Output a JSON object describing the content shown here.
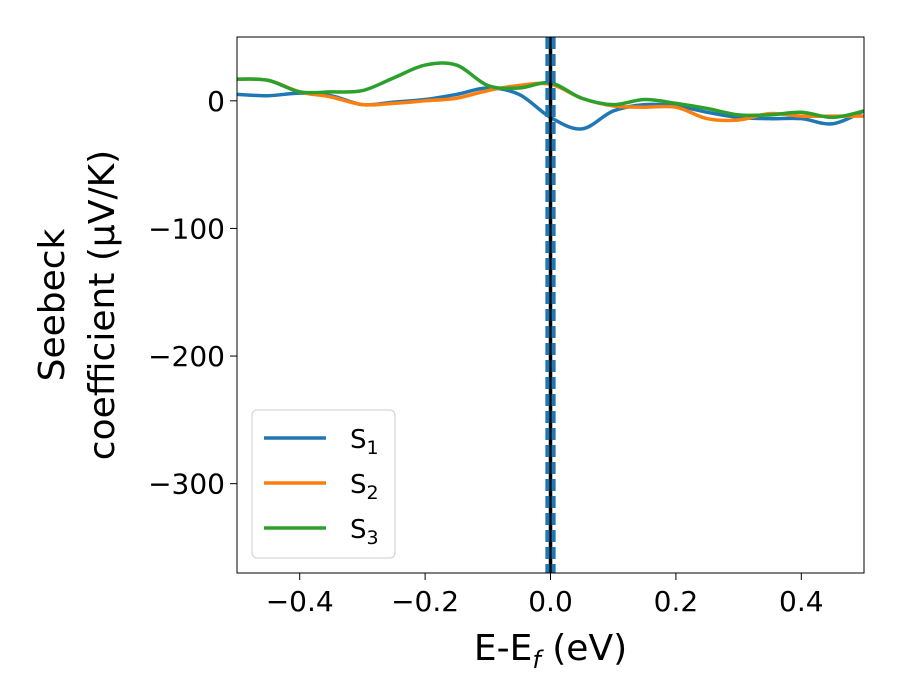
{
  "chart_data": {
    "type": "line",
    "xlabel_main": "E-E",
    "xlabel_sub": "f",
    "xlabel_unit": " (eV)",
    "ylabel_line1": "Seebeck",
    "ylabel_line2": "coefficient  (μV/K)",
    "xlim": [
      -0.5,
      0.5
    ],
    "ylim": [
      -370,
      50
    ],
    "x_ticks": [
      -0.4,
      -0.2,
      0.0,
      0.2,
      0.4
    ],
    "x_tick_labels": [
      "−0.4",
      "−0.2",
      "0.0",
      "0.2",
      "0.4"
    ],
    "y_ticks": [
      0,
      -100,
      -200,
      -300
    ],
    "y_tick_labels": [
      "0",
      "−100",
      "−200",
      "−300"
    ],
    "grid": false,
    "legend_position": "lower-left",
    "reference_lines": [
      {
        "x": 0.0,
        "style": "solid",
        "color": "#000000"
      },
      {
        "x": -0.005,
        "style": "dashed",
        "color": "#1f77b4"
      },
      {
        "x": 0.005,
        "style": "dashed",
        "color": "#1f77b4"
      }
    ],
    "series": [
      {
        "name": "S",
        "subscript": "1",
        "color": "#1f77b4",
        "x": [
          -0.5,
          -0.45,
          -0.4,
          -0.35,
          -0.3,
          -0.25,
          -0.2,
          -0.15,
          -0.1,
          -0.05,
          0.0,
          0.05,
          0.1,
          0.15,
          0.2,
          0.25,
          0.3,
          0.35,
          0.4,
          0.45,
          0.5
        ],
        "y": [
          5,
          4,
          6,
          4,
          -3,
          -1,
          1,
          5,
          10,
          5,
          -13,
          -22,
          -8,
          -3,
          -4,
          -9,
          -13,
          -14,
          -14,
          -18,
          -8
        ]
      },
      {
        "name": "S",
        "subscript": "2",
        "color": "#ff7f0e",
        "x": [
          -0.5,
          -0.45,
          -0.4,
          -0.35,
          -0.3,
          -0.25,
          -0.2,
          -0.15,
          -0.1,
          -0.05,
          0.0,
          0.05,
          0.1,
          0.15,
          0.2,
          0.25,
          0.3,
          0.35,
          0.4,
          0.45,
          0.5
        ],
        "y": [
          17,
          16,
          7,
          3,
          -3,
          -2,
          0,
          2,
          8,
          12,
          13,
          2,
          -4,
          -5,
          -5,
          -14,
          -15,
          -10,
          -12,
          -12,
          -12
        ]
      },
      {
        "name": "S",
        "subscript": "3",
        "color": "#2ca02c",
        "x": [
          -0.5,
          -0.45,
          -0.4,
          -0.35,
          -0.3,
          -0.25,
          -0.2,
          -0.15,
          -0.1,
          -0.05,
          0.0,
          0.05,
          0.1,
          0.15,
          0.2,
          0.25,
          0.3,
          0.35,
          0.4,
          0.45,
          0.5
        ],
        "y": [
          17,
          16,
          7,
          7,
          8,
          18,
          28,
          28,
          12,
          10,
          14,
          2,
          -3,
          1,
          -2,
          -6,
          -11,
          -11,
          -9,
          -13,
          -8
        ]
      }
    ]
  }
}
